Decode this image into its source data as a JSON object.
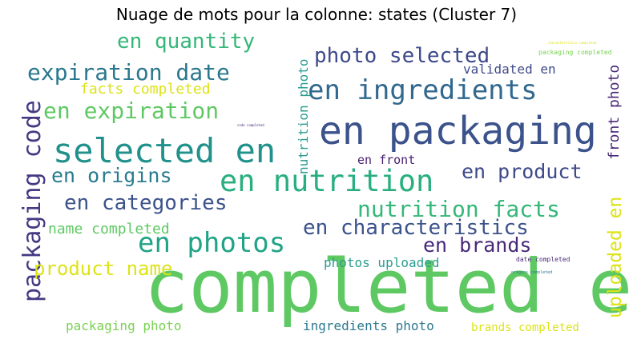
{
  "chart_data": {
    "type": "wordcloud",
    "title": "Nuage de mots pour la colonne: states (Cluster 7)",
    "words": [
      {
        "text": "completed en",
        "weight": 100,
        "color": "#5ec962"
      },
      {
        "text": "en packaging",
        "weight": 55,
        "color": "#3b528b"
      },
      {
        "text": "selected en",
        "weight": 48,
        "color": "#21918c"
      },
      {
        "text": "en nutrition",
        "weight": 42,
        "color": "#29af7f"
      },
      {
        "text": "en ingredients",
        "weight": 38,
        "color": "#31688e"
      },
      {
        "text": "en photos",
        "weight": 37,
        "color": "#20a386"
      },
      {
        "text": "packaging code",
        "weight": 33,
        "color": "#443983"
      },
      {
        "text": "expiration date",
        "weight": 32,
        "color": "#2a788e"
      },
      {
        "text": "en expiration",
        "weight": 32,
        "color": "#5ec962"
      },
      {
        "text": "nutrition facts",
        "weight": 31,
        "color": "#35b779"
      },
      {
        "text": "en characteristics",
        "weight": 30,
        "color": "#3b528b"
      },
      {
        "text": "en categories",
        "weight": 30,
        "color": "#3b528b"
      },
      {
        "text": "photo selected",
        "weight": 30,
        "color": "#3e4989"
      },
      {
        "text": "en quantity",
        "weight": 29,
        "color": "#35b779"
      },
      {
        "text": "en origins",
        "weight": 28,
        "color": "#287c8e"
      },
      {
        "text": "en product",
        "weight": 28,
        "color": "#3e4a89"
      },
      {
        "text": "en brands",
        "weight": 28,
        "color": "#482878"
      },
      {
        "text": "product name",
        "weight": 27,
        "color": "#dde318"
      },
      {
        "text": "uploaded en",
        "weight": 24,
        "color": "#dde318"
      },
      {
        "text": "name completed",
        "weight": 20,
        "color": "#5ec962"
      },
      {
        "text": "facts completed",
        "weight": 19,
        "color": "#dde318"
      },
      {
        "text": "front photo",
        "weight": 19,
        "color": "#482878"
      },
      {
        "text": "nutrition photo",
        "weight": 18,
        "color": "#2a9d8f"
      },
      {
        "text": "validated en",
        "weight": 18,
        "color": "#3e4a89"
      },
      {
        "text": "photos uploaded",
        "weight": 17,
        "color": "#2a9d8f"
      },
      {
        "text": "packaging photo",
        "weight": 17,
        "color": "#7ad151"
      },
      {
        "text": "ingredients photo",
        "weight": 17,
        "color": "#2a788e"
      },
      {
        "text": "en front",
        "weight": 16,
        "color": "#481f70"
      },
      {
        "text": "brands completed",
        "weight": 15,
        "color": "#dde318"
      },
      {
        "text": "packaging completed",
        "weight": 8,
        "color": "#7ad151"
      },
      {
        "text": "date completed",
        "weight": 8,
        "color": "#482878"
      },
      {
        "text": "origins completed",
        "weight": 4,
        "color": "#2a788e"
      },
      {
        "text": "characteristics completed",
        "weight": 3,
        "color": "#dde318"
      },
      {
        "text": "code completed",
        "weight": 3,
        "color": "#482878"
      }
    ]
  }
}
